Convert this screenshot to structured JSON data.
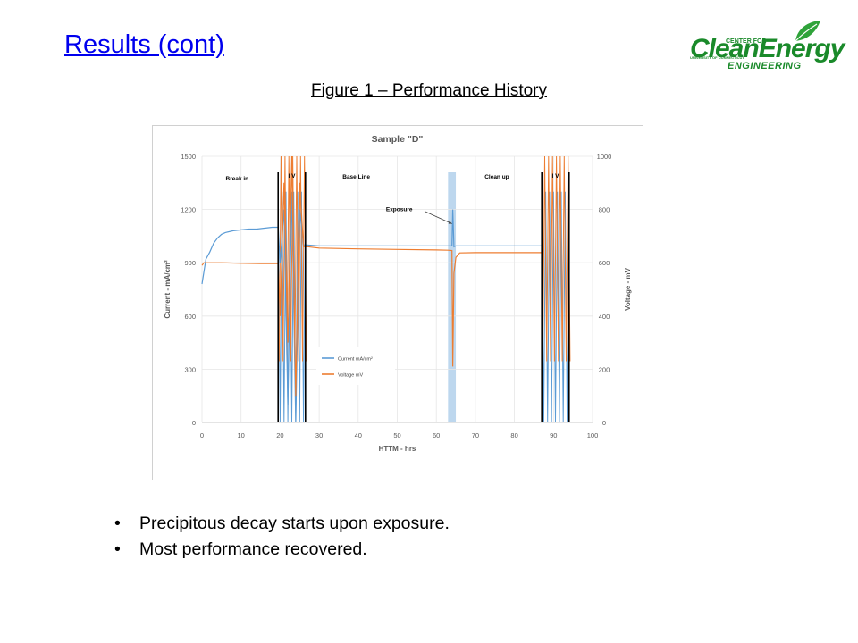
{
  "slide": {
    "title": "Results (cont)",
    "figure_caption": "Figure 1 – Performance History",
    "bullets": [
      "Precipitous decay starts upon exposure.",
      "Most performance recovered."
    ],
    "bullet_glyph": "•"
  },
  "logo": {
    "line1": "CENTER FOR",
    "line2": "CleanEnergy",
    "line3": "UNIVERSITY OF CONNECTICUT",
    "line4": "ENGINEERING",
    "color": "#1a8a2a",
    "icon": "leaf-icon"
  },
  "chart_data": {
    "type": "line",
    "title": "Sample \"D\"",
    "xlabel": "HTTM - hrs",
    "ylabel_left": "Current - mA/cm²",
    "ylabel_right": "Voltage - mV",
    "xlim": [
      0,
      100
    ],
    "ylim_left": [
      0,
      1500
    ],
    "ylim_right": [
      0,
      1000
    ],
    "x_ticks": [
      "0",
      "10",
      "20",
      "30",
      "40",
      "50",
      "60",
      "70",
      "80",
      "90",
      "100"
    ],
    "y_left_ticks": [
      "0",
      "300",
      "600",
      "900",
      "1200",
      "1500"
    ],
    "y_right_ticks": [
      "0",
      "200",
      "400",
      "600",
      "800",
      "1000"
    ],
    "grid": true,
    "legend_position": "center-left",
    "series": [
      {
        "name": "Current mA/cm²",
        "axis": "left",
        "color": "#5b9bd5",
        "x": [
          0,
          1,
          2,
          3,
          4,
          5,
          6,
          8,
          10,
          12,
          14,
          16,
          18,
          19.5,
          20,
          21,
          22,
          23,
          24,
          25,
          26,
          27,
          30,
          40,
          50,
          60,
          63,
          64,
          64.2,
          64.5,
          65,
          70,
          80,
          87
        ],
        "y": [
          780,
          920,
          960,
          1010,
          1040,
          1060,
          1070,
          1080,
          1085,
          1090,
          1090,
          1095,
          1100,
          1100,
          900,
          1200,
          100,
          1300,
          0,
          1200,
          1000,
          1000,
          995,
          995,
          995,
          995,
          995,
          995,
          1200,
          990,
          995,
          995,
          995,
          995
        ]
      },
      {
        "name": "Voltage mV",
        "axis": "right",
        "color": "#ed7d31",
        "x": [
          0,
          0.5,
          1,
          2,
          5,
          10,
          15,
          19.5,
          20,
          21,
          22,
          23,
          24,
          25,
          26,
          27,
          30,
          40,
          50,
          60,
          63,
          64,
          64.2,
          64.5,
          65,
          66,
          70,
          80,
          87
        ],
        "y": [
          590,
          600,
          600,
          600,
          600,
          598,
          597,
          597,
          400,
          900,
          300,
          1000,
          100,
          900,
          660,
          660,
          655,
          652,
          650,
          648,
          647,
          646,
          210,
          560,
          620,
          637,
          638,
          638,
          638
        ]
      }
    ],
    "iv_segments": [
      {
        "x_start": 19.5,
        "x_end": 26.5
      },
      {
        "x_start": 87,
        "x_end": 94
      }
    ],
    "vertical_lines_x": [
      19.5,
      26.5,
      87,
      94
    ],
    "exposure_band": {
      "x_start": 63,
      "x_end": 65,
      "color": "#bdd7ee"
    },
    "annotations": [
      {
        "text": "Break in",
        "x": 9,
        "y": 1365
      },
      {
        "text": "I V",
        "x": 23,
        "y": 1380
      },
      {
        "text": "Base Line",
        "x": 39.5,
        "y": 1375
      },
      {
        "text": "Exposure",
        "x": 50.5,
        "y": 1190
      },
      {
        "text": "Clean up",
        "x": 75.5,
        "y": 1375
      },
      {
        "text": "I V",
        "x": 90.5,
        "y": 1380
      }
    ],
    "exposure_arrow": {
      "from": [
        57,
        1190
      ],
      "to": [
        64,
        1120
      ]
    }
  }
}
